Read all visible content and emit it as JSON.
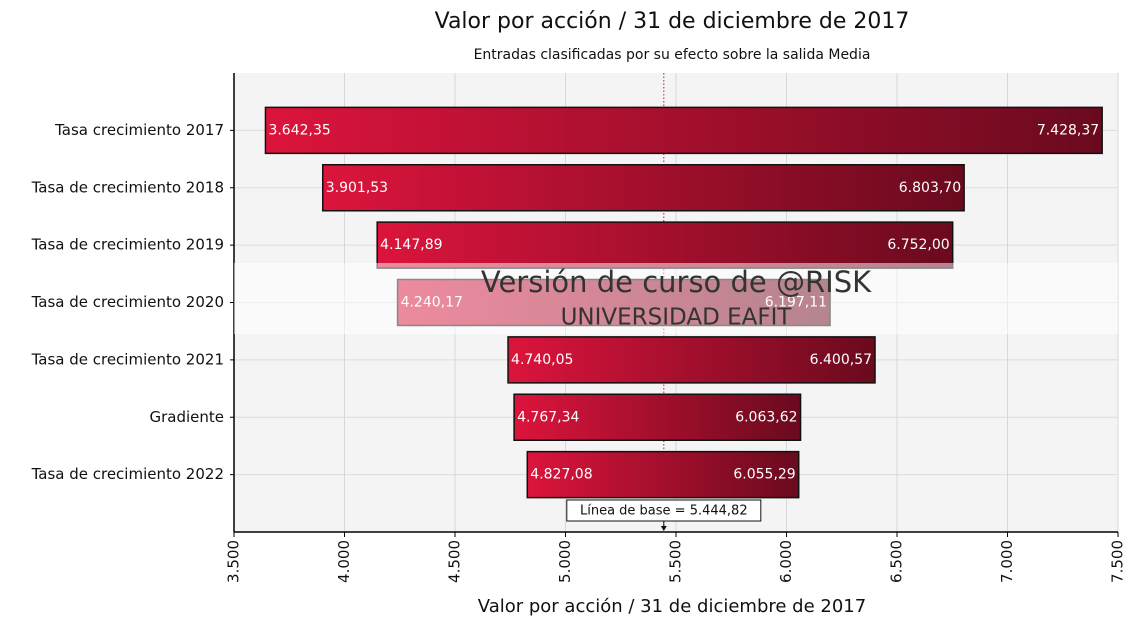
{
  "chart_data": {
    "type": "tornado",
    "title": "Valor por acción / 31 de diciembre de 2017",
    "subtitle": "Entradas clasificadas por su efecto sobre la salida Media",
    "x_label": "Valor por acción / 31 de diciembre de 2017",
    "categories": [
      "Tasa crecimiento 2017",
      "Tasa de crecimiento 2018",
      "Tasa de crecimiento 2019",
      "Tasa de crecimiento 2020",
      "Tasa de crecimiento 2021",
      "Gradiente",
      "Tasa de crecimiento 2022"
    ],
    "low": [
      3642.35,
      3901.53,
      4147.89,
      4240.17,
      4740.05,
      4767.34,
      4827.08
    ],
    "low_labels": [
      "3.642,35",
      "3.901,53",
      "4.147,89",
      "4.240,17",
      "4.740,05",
      "4.767,34",
      "4.827,08"
    ],
    "high": [
      7428.37,
      6803.7,
      6752.0,
      6197.11,
      6400.57,
      6063.62,
      6055.29
    ],
    "high_labels": [
      "7.428,37",
      "6.803,70",
      "6.752,00",
      "6.197,11",
      "6.400,57",
      "6.063,62",
      "6.055,29"
    ],
    "baseline": {
      "value": 5444.82,
      "label": "Línea de base = 5.444,82"
    },
    "colors": [
      "#dc143c",
      "#6a0a1e"
    ],
    "xlim": [
      3500,
      7500
    ],
    "xticks": [
      {
        "value": 3500,
        "label": "3.500"
      },
      {
        "value": 4000,
        "label": "4.000"
      },
      {
        "value": 4500,
        "label": "4.500"
      },
      {
        "value": 5000,
        "label": "5.000"
      },
      {
        "value": 5500,
        "label": "5.500"
      },
      {
        "value": 6000,
        "label": "6.000"
      },
      {
        "value": 6500,
        "label": "6.500"
      },
      {
        "value": 7000,
        "label": "7.000"
      },
      {
        "value": 7500,
        "label": "7.500"
      }
    ],
    "grid": true,
    "watermark": [
      "Versión de curso de @RISK",
      "UNIVERSIDAD EAFIT"
    ]
  }
}
